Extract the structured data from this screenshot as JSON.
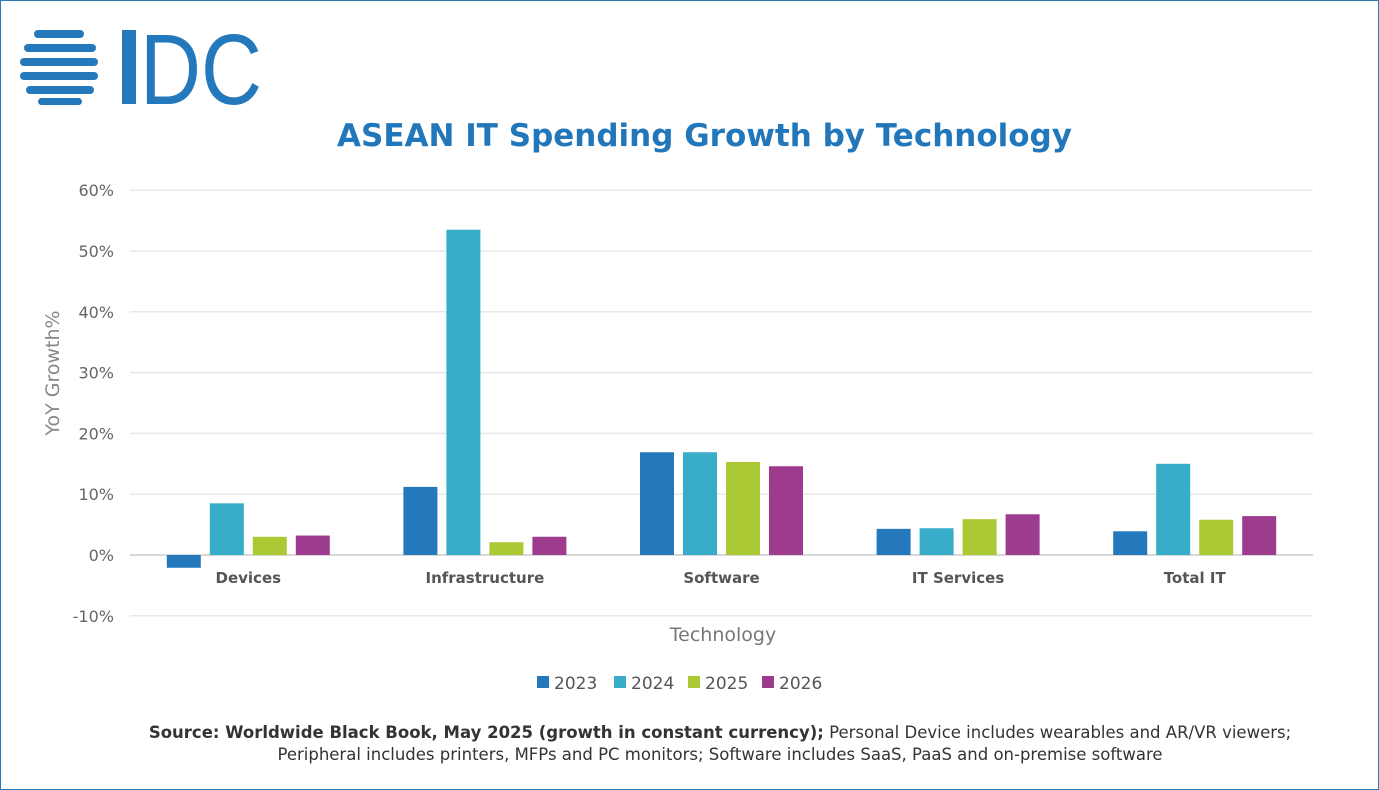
{
  "logo_text": "IDC",
  "colors": {
    "2023": "#2479bd",
    "2024": "#37adc9",
    "2025": "#abc934",
    "2026": "#9d3b8e",
    "title": "#2277bb"
  },
  "chart_data": {
    "type": "bar",
    "title": "ASEAN IT Spending Growth by Technology",
    "xlabel": "Technology",
    "ylabel": "YoY Growth%",
    "ylim": [
      -10,
      60
    ],
    "yticks": [
      "-10%",
      "0%",
      "10%",
      "20%",
      "30%",
      "40%",
      "50%",
      "60%"
    ],
    "grid": true,
    "legend": "bottom",
    "categories": [
      "Devices",
      "Infrastructure",
      "Software",
      "IT Services",
      "Total IT"
    ],
    "series": [
      {
        "name": "2023",
        "values": [
          -2.1,
          11.2,
          16.9,
          4.3,
          3.9
        ]
      },
      {
        "name": "2024",
        "values": [
          8.5,
          53.5,
          16.9,
          4.4,
          15.0
        ]
      },
      {
        "name": "2025",
        "values": [
          3.0,
          2.1,
          15.3,
          5.9,
          5.8
        ]
      },
      {
        "name": "2026",
        "values": [
          3.2,
          3.0,
          14.6,
          6.7,
          6.4
        ]
      }
    ]
  },
  "source": {
    "bold": "Source: Worldwide Black Book, May 2025 (growth in constant currency);",
    "line1": " Personal Device includes wearables and AR/VR viewers;",
    "line2": "Peripheral includes printers, MFPs and PC monitors; Software includes SaaS, PaaS and on-premise software"
  }
}
